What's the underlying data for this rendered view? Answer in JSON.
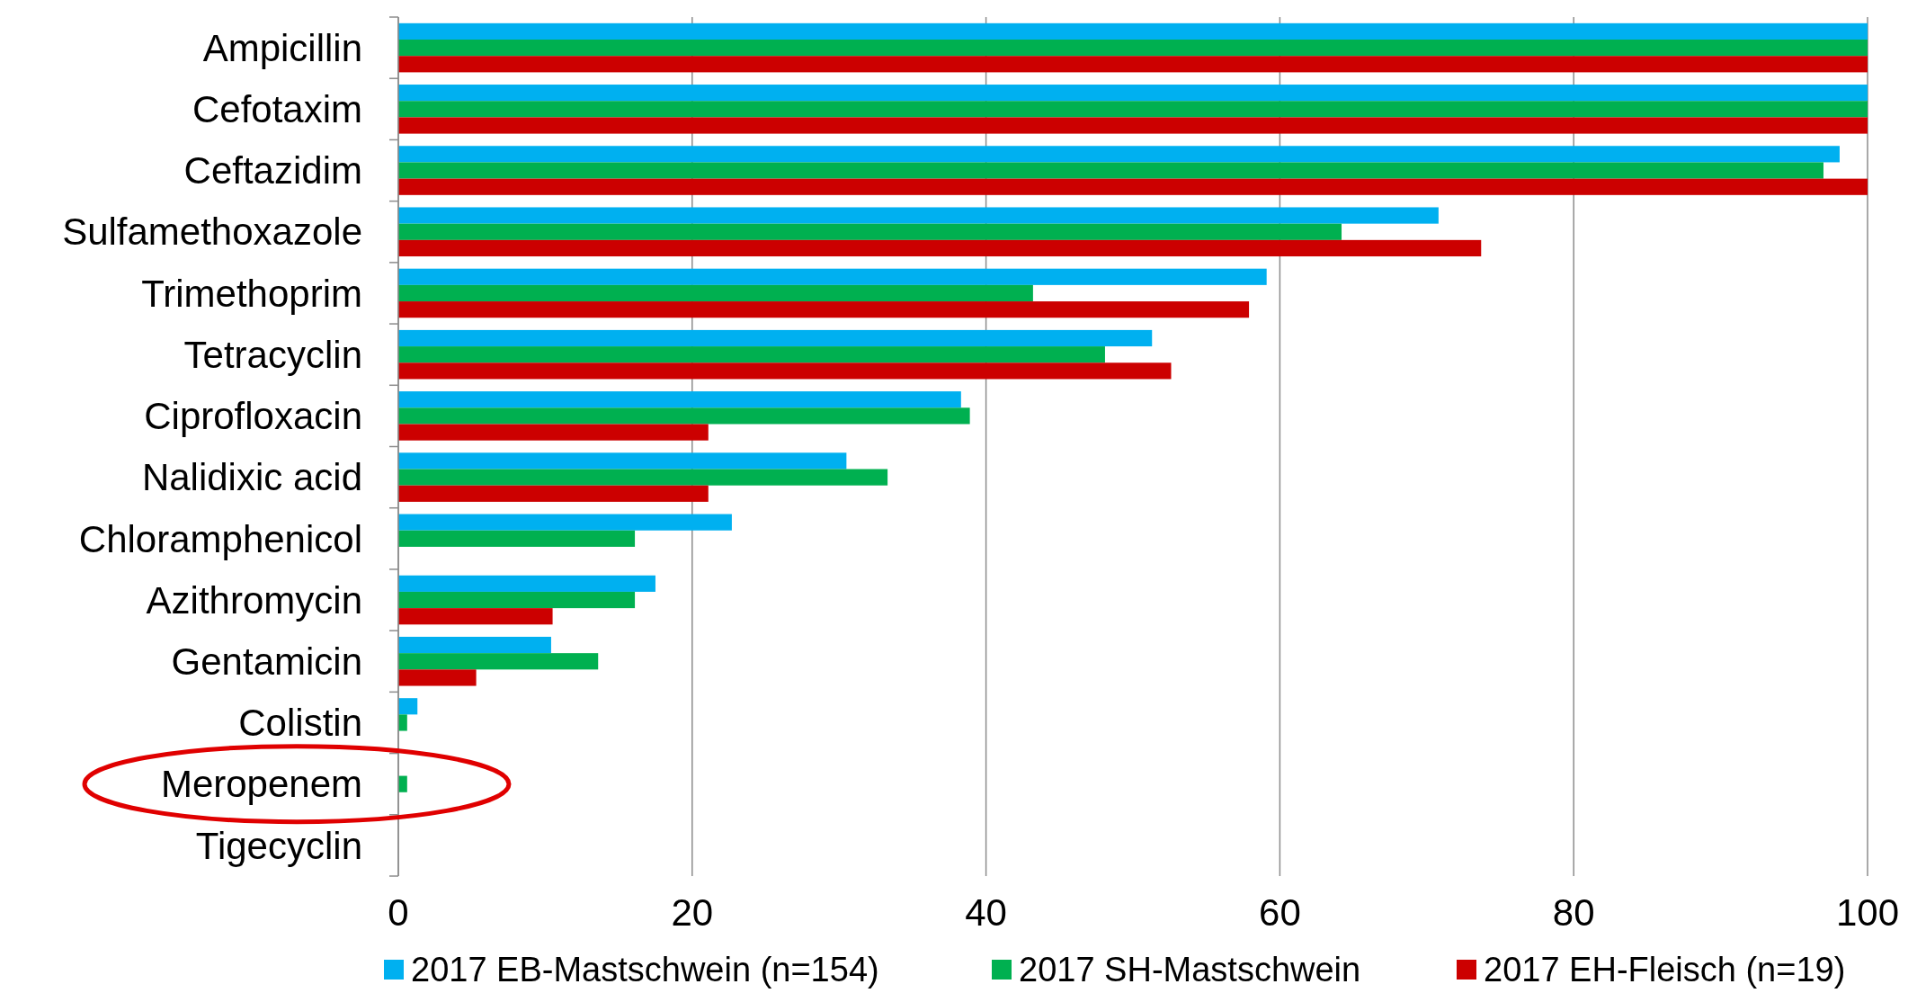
{
  "chart_data": {
    "type": "bar",
    "orientation": "horizontal",
    "categories": [
      "Ampicillin",
      "Cefotaxim",
      "Ceftazidim",
      "Sulfamethoxazole",
      "Trimethoprim",
      "Tetracyclin",
      "Ciprofloxacin",
      "Nalidixic acid",
      "Chloramphenicol",
      "Azithromycin",
      "Gentamicin",
      "Colistin",
      "Meropenem",
      "Tigecyclin"
    ],
    "series": [
      {
        "name": "2017 EB-Mastschwein (n=154)",
        "color": "#00b0f0",
        "values": [
          100,
          100,
          98.1,
          70.8,
          59.1,
          51.3,
          38.3,
          30.5,
          22.7,
          17.5,
          10.4,
          1.3,
          0,
          0
        ]
      },
      {
        "name": "2017 SH-Mastschwein",
        "color": "#00b050",
        "values": [
          100,
          100,
          97.0,
          64.2,
          43.2,
          48.1,
          38.9,
          33.3,
          16.1,
          16.1,
          13.6,
          0.6,
          0.6,
          0
        ]
      },
      {
        "name": "2017 EH-Fleisch (n=19)",
        "color": "#cc0000",
        "values": [
          100,
          100,
          100,
          73.7,
          57.9,
          52.6,
          21.1,
          21.1,
          0,
          10.5,
          5.3,
          0,
          0,
          0
        ]
      }
    ],
    "xlim": [
      0,
      100
    ],
    "xticks": [
      0,
      20,
      40,
      60,
      80,
      100
    ],
    "grid": "x",
    "legend": "bottom"
  }
}
